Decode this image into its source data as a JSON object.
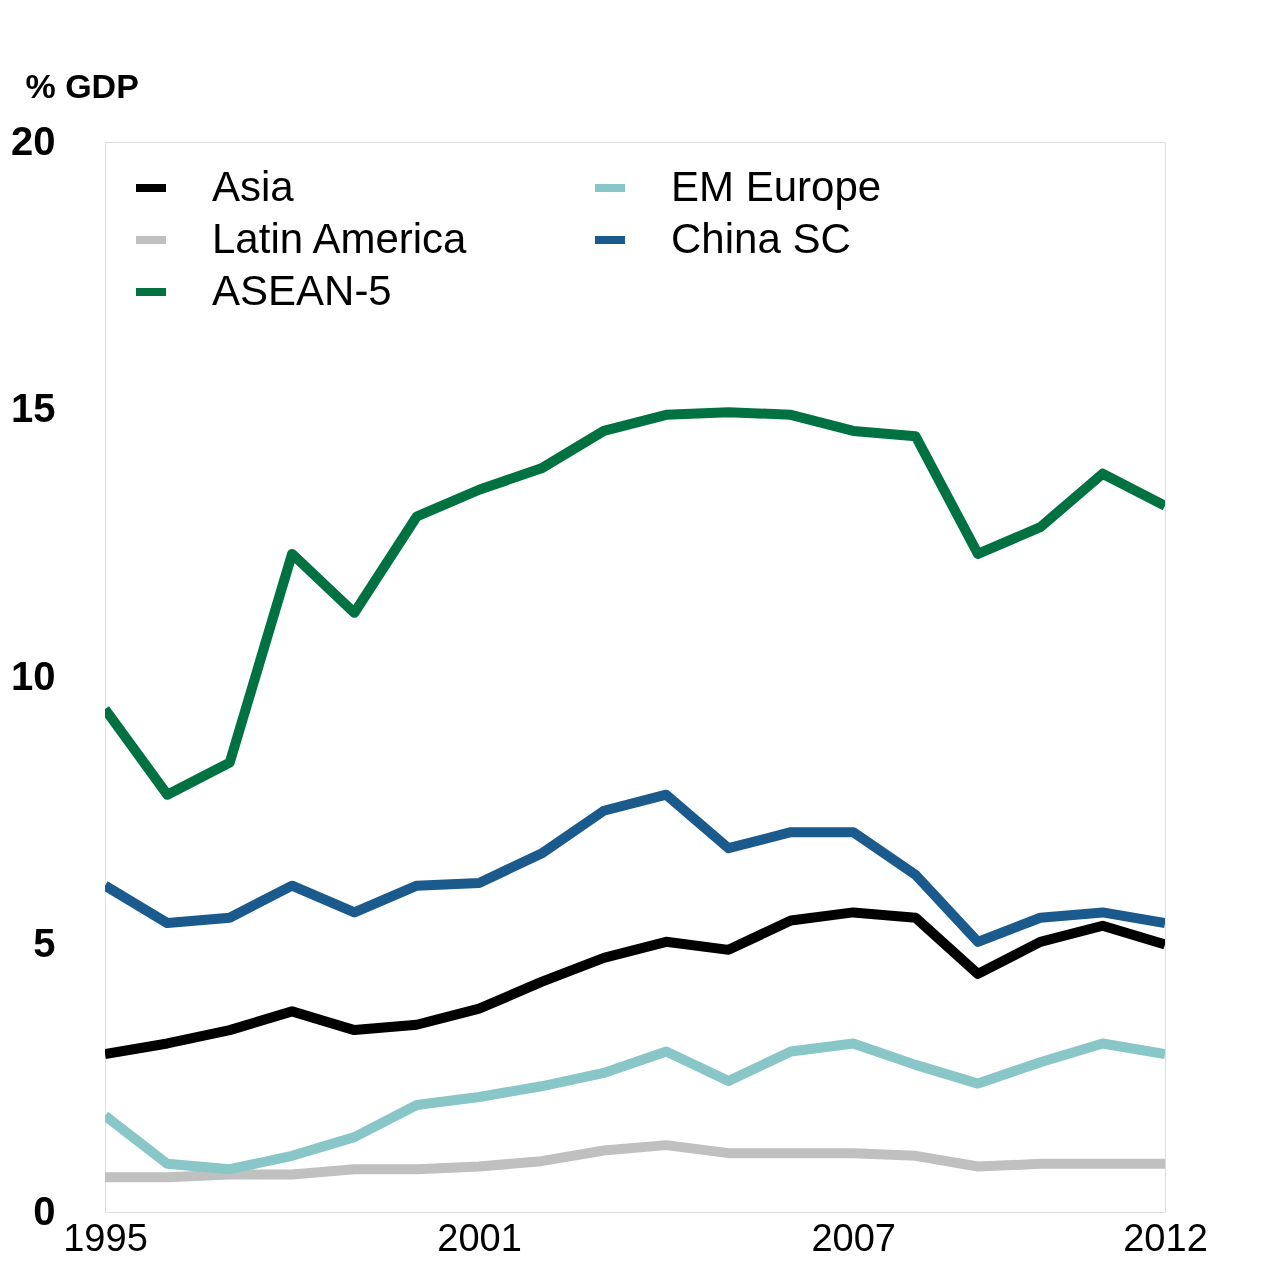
{
  "chart_data": {
    "type": "line",
    "ylabel": "% GDP",
    "x": [
      1995,
      1996,
      1997,
      1998,
      1999,
      2000,
      2001,
      2002,
      2003,
      2004,
      2005,
      2006,
      2007,
      2008,
      2009,
      2010,
      2011,
      2012
    ],
    "xlim": [
      1995,
      2012
    ],
    "xticks": [
      1995,
      2001,
      2007,
      2012
    ],
    "ylim": [
      0,
      20
    ],
    "yticks": [
      0,
      5,
      10,
      15,
      20
    ],
    "grid": false,
    "legend": "top left",
    "line_style": "solid",
    "marker": "none",
    "series": [
      {
        "name": "Asia",
        "color": "#000000",
        "values": [
          2.95,
          3.15,
          3.4,
          3.75,
          3.4,
          3.5,
          3.8,
          4.3,
          4.75,
          5.05,
          4.9,
          5.45,
          5.6,
          5.5,
          4.45,
          5.05,
          5.35,
          5.0
        ]
      },
      {
        "name": "Latin America",
        "color": "#c0c0c0",
        "values": [
          0.65,
          0.65,
          0.7,
          0.7,
          0.8,
          0.8,
          0.85,
          0.95,
          1.15,
          1.25,
          1.1,
          1.1,
          1.1,
          1.05,
          0.85,
          0.9,
          0.9,
          0.9
        ]
      },
      {
        "name": "ASEAN-5",
        "color": "#007140",
        "values": [
          9.4,
          7.8,
          8.4,
          12.3,
          11.2,
          13.0,
          13.5,
          13.9,
          14.6,
          14.9,
          14.95,
          14.9,
          14.6,
          14.5,
          12.3,
          12.8,
          13.8,
          13.2
        ]
      },
      {
        "name": "EM Europe",
        "color": "#88c6c8",
        "values": [
          1.8,
          0.9,
          0.8,
          1.05,
          1.4,
          2.0,
          2.15,
          2.35,
          2.6,
          3.0,
          2.45,
          3.0,
          3.15,
          2.75,
          2.4,
          2.8,
          3.15,
          2.95
        ]
      },
      {
        "name": "China SC",
        "color": "#1b5a8c",
        "values": [
          6.1,
          5.4,
          5.5,
          6.1,
          5.6,
          6.1,
          6.15,
          6.7,
          7.5,
          7.8,
          6.8,
          7.1,
          7.1,
          6.3,
          5.05,
          5.5,
          5.6,
          5.4
        ]
      }
    ]
  }
}
